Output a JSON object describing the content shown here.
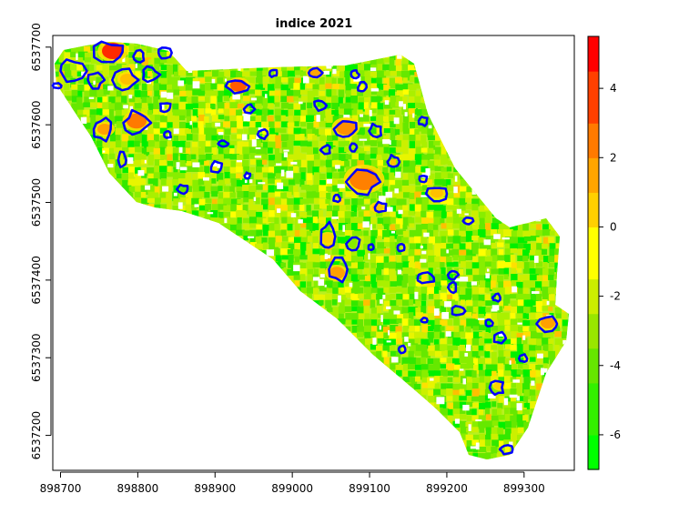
{
  "chart_data": {
    "type": "heatmap",
    "title": "indice 2021",
    "xlabel": "",
    "ylabel": "",
    "xlim": [
      898690,
      899365
    ],
    "ylim": [
      6537155,
      6537715
    ],
    "x_ticks": [
      898700,
      898800,
      898900,
      899000,
      899100,
      899200,
      899300
    ],
    "x_tick_labels": [
      "898700",
      "898800",
      "898900",
      "899000",
      "899100",
      "899200",
      "899300"
    ],
    "y_ticks": [
      6537200,
      6537300,
      6537400,
      6537500,
      6537600,
      6537700
    ],
    "y_tick_labels": [
      "6537200",
      "6537300",
      "6537400",
      "6537500",
      "6537600",
      "6537700"
    ],
    "colorbar": {
      "min": -7,
      "max": 5.5,
      "ticks": [
        -6,
        -4,
        -2,
        0,
        2,
        4
      ],
      "tick_labels": [
        "-6",
        "-4",
        "-2",
        "0",
        "2",
        "4"
      ],
      "colors_low_to_high": [
        "#00ff00",
        "#33f000",
        "#66e600",
        "#99e600",
        "#ccee00",
        "#ffff00",
        "#ffd000",
        "#ffa500",
        "#ff7a00",
        "#ff4000",
        "#ff0000"
      ]
    },
    "outline_color": "#0000ff",
    "grid": false
  }
}
